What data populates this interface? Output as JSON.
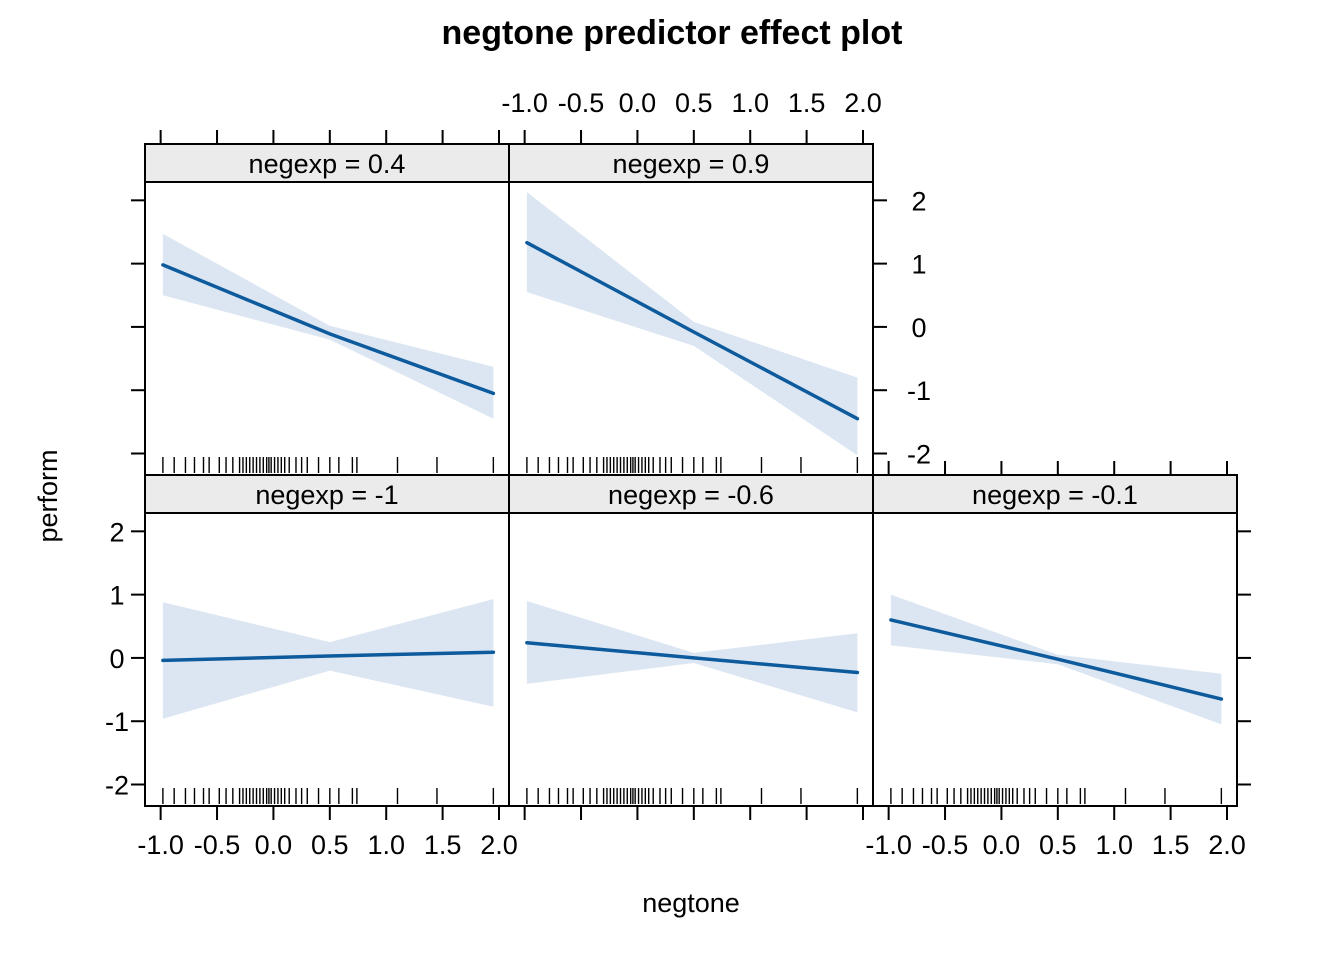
{
  "chart_data": {
    "type": "line",
    "title": "negtone predictor effect plot",
    "xlabel": "negtone",
    "ylabel": "perform",
    "xlim": [
      -1.05,
      2.0
    ],
    "ylim": [
      -2.15,
      2.1
    ],
    "x_ticks": [
      -1.0,
      -0.5,
      0.0,
      0.5,
      1.0,
      1.5,
      2.0
    ],
    "x_tick_labels": [
      "-1.0",
      "-0.5",
      "0.0",
      "0.5",
      "1.0",
      "1.5",
      "2.0"
    ],
    "y_ticks": [
      -2,
      -1,
      0,
      1,
      2
    ],
    "y_tick_labels": [
      "-2",
      "-1",
      "0",
      "1",
      "2"
    ],
    "grid": false,
    "line_color": "#0d5a9c",
    "band_color": "#dce6f2",
    "strip_color": "#ebebeb",
    "rug": [
      -0.98,
      -0.88,
      -0.78,
      -0.7,
      -0.62,
      -0.57,
      -0.48,
      -0.42,
      -0.36,
      -0.3,
      -0.27,
      -0.24,
      -0.21,
      -0.18,
      -0.15,
      -0.12,
      -0.09,
      -0.06,
      -0.04,
      -0.02,
      0.01,
      0.04,
      0.07,
      0.1,
      0.14,
      0.2,
      0.25,
      0.3,
      0.4,
      0.5,
      0.58,
      0.7,
      0.74,
      1.1,
      1.45,
      1.95
    ],
    "panels": [
      {
        "strip": "negexp = 0.4",
        "x": [
          -0.98,
          0.5,
          1.95
        ],
        "fit": [
          0.98,
          -0.11,
          -1.05
        ],
        "lower": [
          0.5,
          -0.2,
          -1.45
        ],
        "upper": [
          1.47,
          0.02,
          -0.63
        ]
      },
      {
        "strip": "negexp = 0.9",
        "x": [
          -0.98,
          0.5,
          1.95
        ],
        "fit": [
          1.33,
          -0.08,
          -1.45
        ],
        "lower": [
          0.55,
          -0.3,
          -2.03
        ],
        "upper": [
          2.13,
          0.08,
          -0.8
        ]
      },
      {
        "strip": "negexp = -1",
        "x": [
          -0.98,
          0.5,
          1.95
        ],
        "fit": [
          -0.04,
          0.03,
          0.09
        ],
        "lower": [
          -0.96,
          -0.2,
          -0.77
        ],
        "upper": [
          0.88,
          0.25,
          0.93
        ]
      },
      {
        "strip": "negexp = -0.6",
        "x": [
          -0.98,
          0.5,
          1.95
        ],
        "fit": [
          0.24,
          0.0,
          -0.23
        ],
        "lower": [
          -0.41,
          -0.08,
          -0.86
        ],
        "upper": [
          0.9,
          0.08,
          0.39
        ]
      },
      {
        "strip": "negexp = -0.1",
        "x": [
          -0.98,
          0.5,
          1.95
        ],
        "fit": [
          0.6,
          -0.02,
          -0.65
        ],
        "lower": [
          0.2,
          -0.1,
          -1.05
        ],
        "upper": [
          1.0,
          0.05,
          -0.25
        ]
      }
    ]
  }
}
